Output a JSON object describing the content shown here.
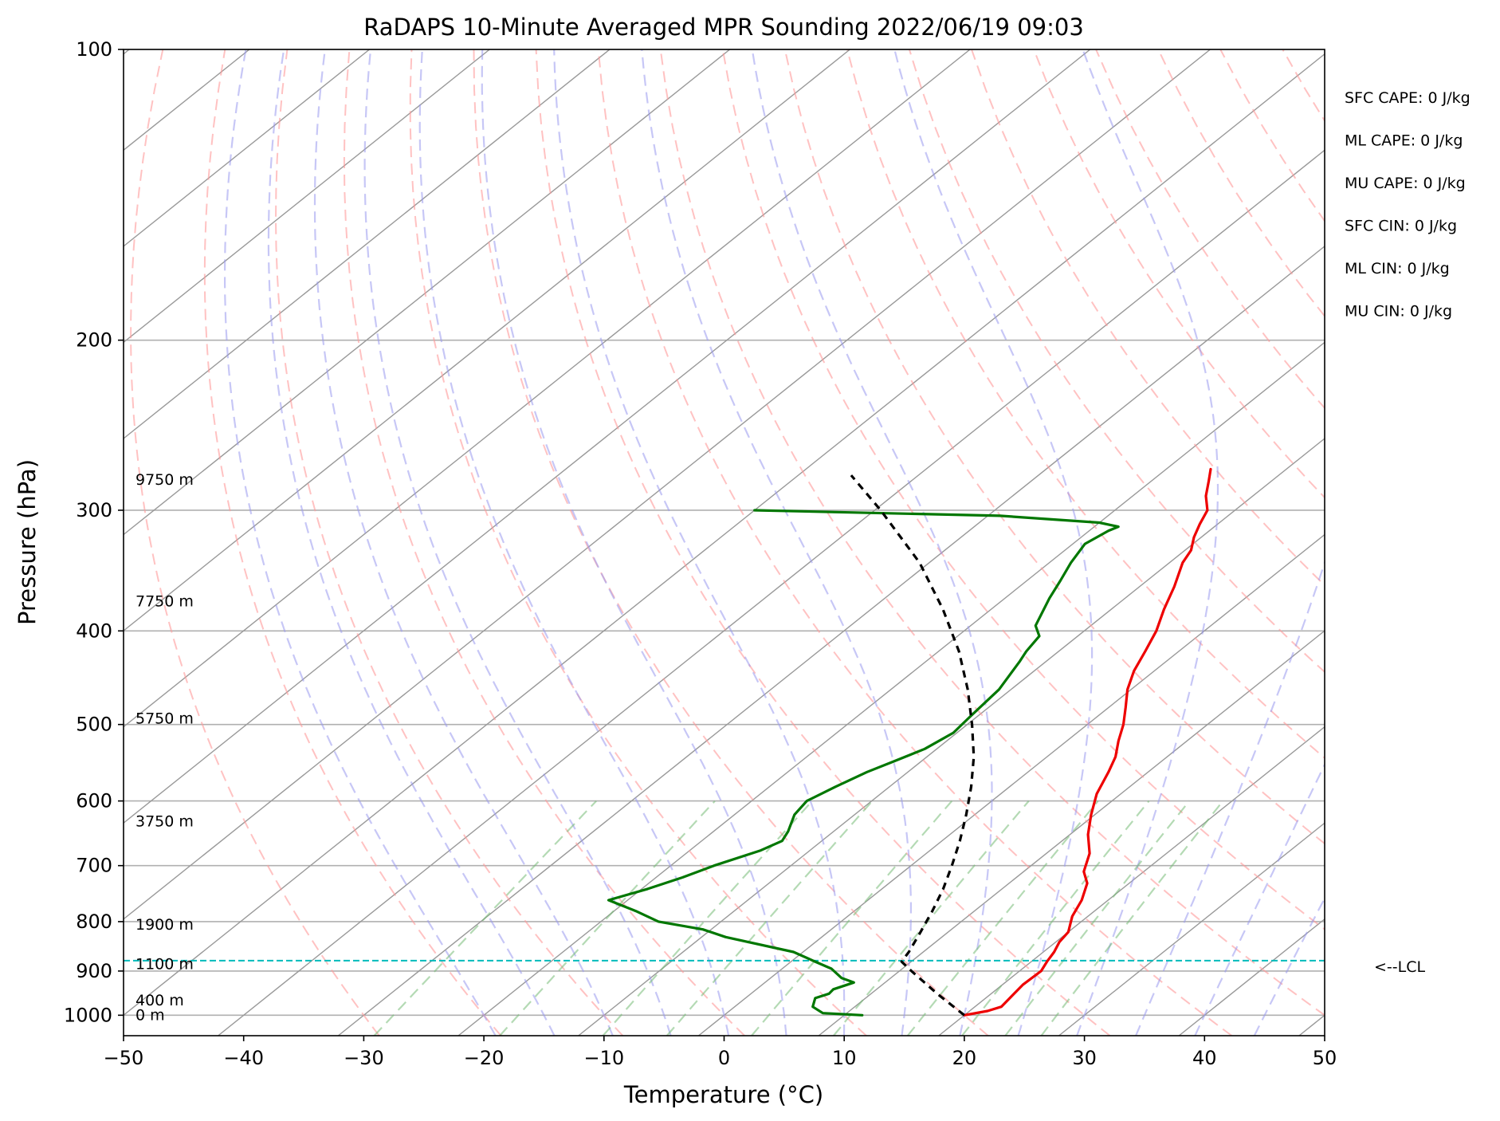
{
  "chart_data": {
    "type": "line",
    "subtype": "skew-t log-p sounding",
    "title": "RaDAPS 10-Minute Averaged MPR Sounding 2022/06/19 09:03",
    "xlabel": "Temperature (°C)",
    "ylabel": "Pressure (hPa)",
    "xlim": [
      -50,
      50
    ],
    "ylim": [
      1050,
      100
    ],
    "y_scale": "log",
    "skew": "isotherms slanted to the right",
    "grid": true,
    "x_ticks": [
      -50,
      -40,
      -30,
      -20,
      -10,
      0,
      10,
      20,
      30,
      40,
      50
    ],
    "x_tick_labels": [
      "−50",
      "−40",
      "−30",
      "−20",
      "−10",
      "0",
      "10",
      "20",
      "30",
      "40",
      "50"
    ],
    "y_ticks": [
      100,
      200,
      300,
      400,
      500,
      600,
      700,
      800,
      900,
      1000
    ],
    "y_tick_labels": [
      "100",
      "200",
      "300",
      "400",
      "500",
      "600",
      "700",
      "800",
      "900",
      "1000"
    ],
    "series": [
      {
        "role": "temperature",
        "color": "#ee0000",
        "points": [
          [
            1000,
            20.0
          ],
          [
            990,
            21.5
          ],
          [
            980,
            22.2
          ],
          [
            960,
            22.0
          ],
          [
            930,
            21.7
          ],
          [
            900,
            21.8
          ],
          [
            880,
            21.3
          ],
          [
            860,
            20.9
          ],
          [
            840,
            20.3
          ],
          [
            820,
            20.0
          ],
          [
            790,
            18.7
          ],
          [
            760,
            17.8
          ],
          [
            730,
            16.5
          ],
          [
            710,
            15.0
          ],
          [
            680,
            13.6
          ],
          [
            650,
            11.5
          ],
          [
            620,
            9.7
          ],
          [
            590,
            8.0
          ],
          [
            560,
            6.7
          ],
          [
            540,
            5.7
          ],
          [
            520,
            4.3
          ],
          [
            500,
            3.0
          ],
          [
            480,
            1.4
          ],
          [
            460,
            -0.3
          ],
          [
            440,
            -1.7
          ],
          [
            420,
            -2.8
          ],
          [
            400,
            -4.0
          ],
          [
            380,
            -5.6
          ],
          [
            360,
            -7.1
          ],
          [
            340,
            -8.9
          ],
          [
            330,
            -9.5
          ],
          [
            320,
            -10.6
          ],
          [
            310,
            -11.5
          ],
          [
            300,
            -12.3
          ],
          [
            290,
            -13.9
          ],
          [
            280,
            -15.2
          ],
          [
            272,
            -16.3
          ]
        ]
      },
      {
        "role": "dewpoint",
        "color": "#007700",
        "points": [
          [
            1000,
            11.5
          ],
          [
            995,
            8.0
          ],
          [
            980,
            6.5
          ],
          [
            960,
            5.8
          ],
          [
            950,
            6.5
          ],
          [
            940,
            6.4
          ],
          [
            925,
            7.4
          ],
          [
            915,
            5.9
          ],
          [
            895,
            4.1
          ],
          [
            880,
            2.0
          ],
          [
            860,
            -0.8
          ],
          [
            830,
            -8.0
          ],
          [
            815,
            -10.7
          ],
          [
            800,
            -15.2
          ],
          [
            780,
            -18.2
          ],
          [
            760,
            -21.6
          ],
          [
            740,
            -19.5
          ],
          [
            720,
            -17.8
          ],
          [
            700,
            -16.4
          ],
          [
            675,
            -14.1
          ],
          [
            660,
            -13.3
          ],
          [
            645,
            -13.8
          ],
          [
            620,
            -15.0
          ],
          [
            600,
            -15.4
          ],
          [
            580,
            -14.5
          ],
          [
            560,
            -13.4
          ],
          [
            545,
            -12.2
          ],
          [
            530,
            -11.0
          ],
          [
            510,
            -10.3
          ],
          [
            490,
            -10.6
          ],
          [
            460,
            -11.0
          ],
          [
            430,
            -12.2
          ],
          [
            420,
            -12.7
          ],
          [
            405,
            -13.2
          ],
          [
            395,
            -14.6
          ],
          [
            370,
            -16.3
          ],
          [
            355,
            -17.2
          ],
          [
            340,
            -18.2
          ],
          [
            325,
            -19.0
          ],
          [
            315,
            -18.4
          ],
          [
            312,
            -18.0
          ],
          [
            309,
            -20.0
          ],
          [
            304,
            -29.0
          ],
          [
            300,
            -50.0
          ]
        ]
      },
      {
        "role": "parcel-profile",
        "color": "#000000",
        "dash": true,
        "points": [
          [
            1000,
            20.0
          ],
          [
            950,
            15.5
          ],
          [
            900,
            11.0
          ],
          [
            880,
            9.2
          ],
          [
            860,
            8.8
          ],
          [
            820,
            7.7
          ],
          [
            780,
            6.5
          ],
          [
            740,
            5.1
          ],
          [
            700,
            3.4
          ],
          [
            660,
            1.5
          ],
          [
            620,
            -0.7
          ],
          [
            580,
            -3.2
          ],
          [
            540,
            -6.1
          ],
          [
            500,
            -9.6
          ],
          [
            460,
            -13.6
          ],
          [
            420,
            -18.3
          ],
          [
            380,
            -24.0
          ],
          [
            340,
            -30.8
          ],
          [
            300,
            -39.5
          ],
          [
            276,
            -45.6
          ]
        ]
      }
    ],
    "reference_lines": {
      "dry_adiabats_color": "#ff9999",
      "moist_adiabats_color": "#9999ee",
      "mixing_ratio_color": "#77bb77",
      "isotherm_color": "#999999",
      "lcl_color": "#00bbbb"
    },
    "lcl": {
      "pressure": 878,
      "label": "<--LCL"
    },
    "height_labels": [
      {
        "pressure": 1000,
        "label": "0 m"
      },
      {
        "pressure": 966,
        "label": "400 m"
      },
      {
        "pressure": 886,
        "label": "1100 m"
      },
      {
        "pressure": 806,
        "label": "1900 m"
      },
      {
        "pressure": 630,
        "label": "3750 m"
      },
      {
        "pressure": 493,
        "label": "5750 m"
      },
      {
        "pressure": 373,
        "label": "7750 m"
      },
      {
        "pressure": 279,
        "label": "9750 m"
      }
    ],
    "stats": [
      "SFC CAPE: 0 J/kg",
      "ML CAPE: 0 J/kg",
      "MU CAPE: 0 J/kg",
      "SFC CIN: 0 J/kg",
      "ML CIN: 0 J/kg",
      "MU CIN: 0 J/kg"
    ]
  }
}
